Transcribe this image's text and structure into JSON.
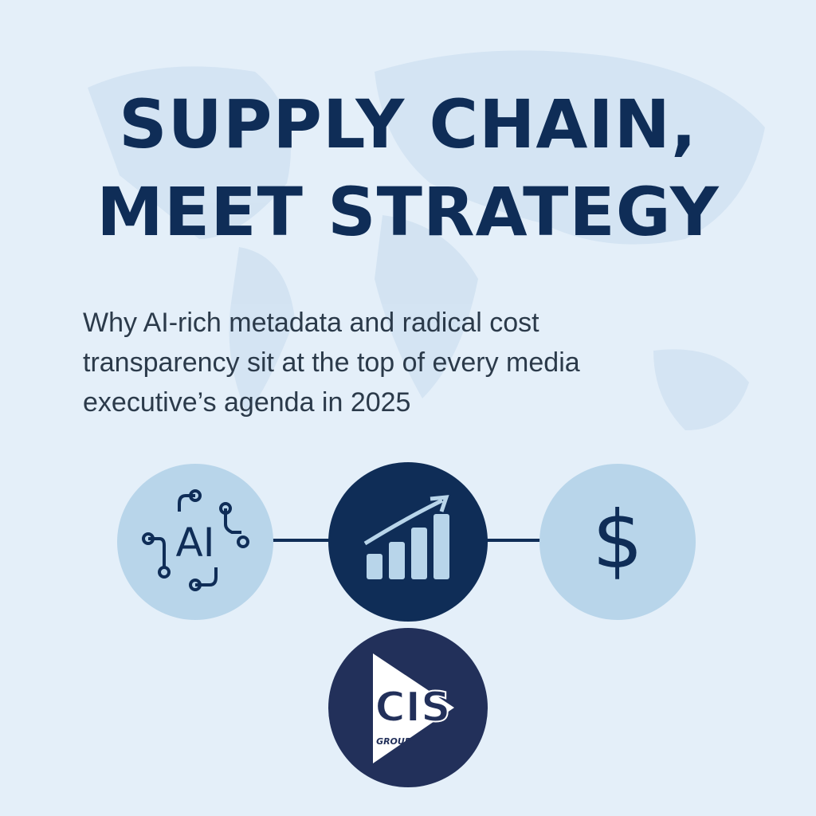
{
  "header": {
    "title_lines": [
      "SUPPLY CHAIN,",
      "MEET STRATEGY"
    ],
    "subtitle_lines": [
      "Why AI-rich metadata and radical cost",
      "transparency sit at the top of every media",
      "executive’s agenda in 2025"
    ]
  },
  "icons": {
    "ai_label": "AI",
    "cost_label": "$"
  },
  "logo": {
    "mark": "CIS",
    "caption": "GROUP"
  }
}
